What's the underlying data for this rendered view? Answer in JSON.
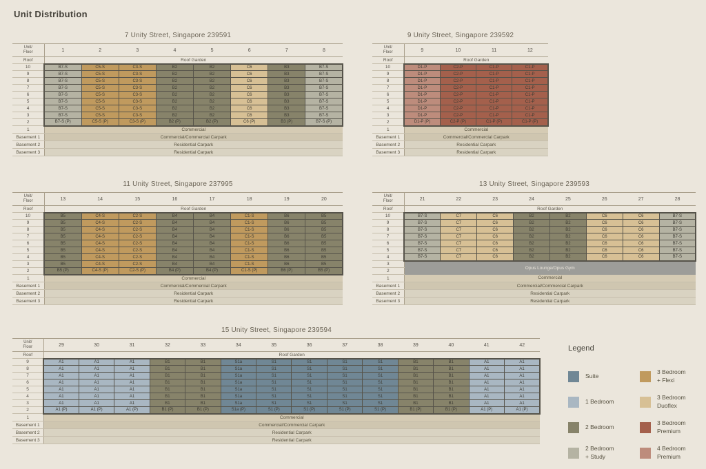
{
  "page_title": "Unit Distribution",
  "colors": {
    "background": "#ebe6dc",
    "suite": "#708795",
    "1bed": "#a9b7c2",
    "2bed": "#87836a",
    "2bs": "#b5b3a3",
    "3bf": "#c09a5e",
    "3bd": "#d7c095",
    "3bp": "#a4604c",
    "4bp": "#bd8c7c",
    "commercial": "#d5cbb4",
    "comm_carpark": "#cfc6b0",
    "res_carpark": "#d9d3c2",
    "opus": "#9d9d99",
    "opus_text": "#ebe6dc"
  },
  "buildings": [
    {
      "title": "7 Unity Street, Singapore 239591",
      "header_label_line1": "Unit/",
      "header_label_line2": "Floor",
      "columns": [
        "1",
        "2",
        "3",
        "4",
        "5",
        "6",
        "7",
        "8"
      ],
      "roof_label": "Roof",
      "roof_text": "Roof Garden",
      "upper_floors": [
        "10",
        "9",
        "8",
        "7",
        "6",
        "5",
        "4",
        "3"
      ],
      "units": [
        "B7-S|2bs",
        "C5-S|3bf",
        "C3-S|3bf",
        "B2|2bed",
        "B2|2bed",
        "C6|3bd",
        "B3|2bed",
        "B7-S|2bs"
      ],
      "p_floor": {
        "label": "2",
        "units": [
          "B7-S (P)|2bs",
          "C5-S (P)|3bf",
          "C3-S (P)|3bf",
          "B2 (P)|2bed",
          "B2 (P)|2bed",
          "C6 (P)|3bd",
          "B3 (P)|2bed",
          "B7-S (P)|2bs"
        ]
      },
      "band_rows": [
        {
          "label": "1",
          "text": "Commercial",
          "style": "commercial"
        },
        {
          "label": "Basement 1",
          "text": "Commercial/Commercial Carpark",
          "style": "comm_carpark"
        },
        {
          "label": "Basement 2",
          "text": "Residential Carpark",
          "style": "res_carpark"
        },
        {
          "label": "Basement 3",
          "text": "Residential Carpark",
          "style": "res_carpark"
        }
      ]
    },
    {
      "title": "9 Unity Street, Singapore 239592",
      "header_label_line1": "Unit/",
      "header_label_line2": "Floor",
      "columns": [
        "9",
        "10",
        "11",
        "12"
      ],
      "roof_label": "Roof",
      "roof_text": "Roof Garden",
      "upper_floors": [
        "10",
        "9",
        "8",
        "7",
        "6",
        "5",
        "4",
        "3"
      ],
      "units": [
        "D1-P|4bp",
        "C2-P|3bp",
        "C1-P|3bp",
        "C1-P|3bp"
      ],
      "p_floor": {
        "label": "2",
        "units": [
          "D1-P (P)|4bp",
          "C2-P (P)|3bp",
          "C1-P (P)|3bp",
          "C1-P (P)|3bp"
        ]
      },
      "band_rows": [
        {
          "label": "1",
          "text": "Commercial",
          "style": "commercial"
        },
        {
          "label": "Basement 1",
          "text": "Commercial/Commercial Carpark",
          "style": "comm_carpark"
        },
        {
          "label": "Basement 2",
          "text": "Residential Carpark",
          "style": "res_carpark"
        },
        {
          "label": "Basement 3",
          "text": "Residential Carpark",
          "style": "res_carpark"
        }
      ]
    },
    {
      "title": "11 Unity Street, Singapore 237995",
      "header_label_line1": "Unit/",
      "header_label_line2": "Floor",
      "columns": [
        "13",
        "14",
        "15",
        "16",
        "17",
        "18",
        "19",
        "20"
      ],
      "roof_label": "Roof",
      "roof_text": "Roof Garden",
      "upper_floors": [
        "10",
        "9",
        "8",
        "7",
        "6",
        "5",
        "4",
        "3"
      ],
      "units": [
        "B5|2bed",
        "C4-S|3bf",
        "C2-S|3bf",
        "B4|2bed",
        "B4|2bed",
        "C1-S|3bf",
        "B6|2bed",
        "B5|2bed"
      ],
      "p_floor": {
        "label": "2",
        "units": [
          "B5 (P)|2bed",
          "C4-S (P)|3bf",
          "C2-S (P)|3bf",
          "B4 (P)|2bed",
          "B4 (P)|2bed",
          "C1-S (P)|3bf",
          "B6 (P)|2bed",
          "B5 (P)|2bed"
        ]
      },
      "band_rows": [
        {
          "label": "1",
          "text": "Commercial",
          "style": "commercial"
        },
        {
          "label": "Basement 1",
          "text": "Commercial/Commercial Carpark",
          "style": "comm_carpark"
        },
        {
          "label": "Basement 2",
          "text": "Residential Carpark",
          "style": "res_carpark"
        },
        {
          "label": "Basement 3",
          "text": "Residential Carpark",
          "style": "res_carpark"
        }
      ]
    },
    {
      "title": "13 Unity Street, Singapore 239593",
      "header_label_line1": "Unit/",
      "header_label_line2": "Floor",
      "columns": [
        "21",
        "22",
        "23",
        "24",
        "25",
        "26",
        "27",
        "28"
      ],
      "roof_label": "Roof",
      "roof_text": "Roof Garden",
      "upper_floors": [
        "10",
        "9",
        "8",
        "7",
        "6",
        "5",
        "4"
      ],
      "units": [
        "B7-S|2bs",
        "C7|3bd",
        "C6|3bd",
        "B2|2bed",
        "B2|2bed",
        "C6|3bd",
        "C6|3bd",
        "B7-S|2bs"
      ],
      "merged_band": {
        "labels": [
          "3",
          "2"
        ],
        "text": "Opus Lounge/Opus Gym",
        "style": "opus"
      },
      "band_rows": [
        {
          "label": "1",
          "text": "Commercial",
          "style": "commercial"
        },
        {
          "label": "Basement 1",
          "text": "Commercial/Commercial Carpark",
          "style": "comm_carpark"
        },
        {
          "label": "Basement 2",
          "text": "Residential Carpark",
          "style": "res_carpark"
        },
        {
          "label": "Basement 3",
          "text": "Residential Carpark",
          "style": "res_carpark"
        }
      ]
    },
    {
      "title": "15 Unity Street, Singapore 239594",
      "header_label_line1": "Unit/",
      "header_label_line2": "Floor",
      "columns": [
        "29",
        "30",
        "31",
        "32",
        "33",
        "34",
        "35",
        "36",
        "37",
        "38",
        "39",
        "40",
        "41",
        "42"
      ],
      "roof_label": "Roof",
      "roof_text": "Roof Garden",
      "upper_floors": [
        "9",
        "8",
        "7",
        "6",
        "5",
        "4",
        "3"
      ],
      "units": [
        "A1|1bed",
        "A1|1bed",
        "A1|1bed",
        "B1|2bed",
        "B1|2bed",
        "S1a|suite",
        "S1|suite",
        "S1|suite",
        "S1|suite",
        "S1|suite",
        "B1|2bed",
        "B1|2bed",
        "A1|1bed",
        "A1|1bed"
      ],
      "p_floor": {
        "label": "2",
        "units": [
          "A1 (P)|1bed",
          "A1 (P)|1bed",
          "A1 (P)|1bed",
          "B1 (P)|2bed",
          "B1 (P)|2bed",
          "S1a (P)|suite",
          "S1 (P)|suite",
          "S1 (P)|suite",
          "S1 (P)|suite",
          "S1 (P)|suite",
          "B1 (P)|2bed",
          "B1 (P)|2bed",
          "A1 (P)|1bed",
          "A1 (P)|1bed"
        ]
      },
      "band_rows": [
        {
          "label": "1",
          "text": "Commercial",
          "style": "commercial"
        },
        {
          "label": "Basement 1",
          "text": "Commercial/Commercial Carpark",
          "style": "comm_carpark"
        },
        {
          "label": "Basement 2",
          "text": "Residential Carpark",
          "style": "res_carpark"
        },
        {
          "label": "Basement 3",
          "text": "Residential Carpark",
          "style": "res_carpark"
        }
      ]
    }
  ],
  "legend": {
    "title": "Legend",
    "columns": [
      [
        {
          "key": "suite",
          "lines": [
            "Suite"
          ],
          "color": "#708795"
        },
        {
          "key": "1bed",
          "lines": [
            "1 Bedroom"
          ],
          "color": "#a9b7c2"
        },
        {
          "key": "2bed",
          "lines": [
            "2 Bedroom"
          ],
          "color": "#87836a"
        },
        {
          "key": "2bs",
          "lines": [
            "2 Bedroom",
            "+ Study"
          ],
          "color": "#b5b3a3"
        }
      ],
      [
        {
          "key": "3bf",
          "lines": [
            "3 Bedroom",
            "+ Flexi"
          ],
          "color": "#c09a5e"
        },
        {
          "key": "3bd",
          "lines": [
            "3 Bedroom",
            "Duoflex"
          ],
          "color": "#d7c095"
        },
        {
          "key": "3bp",
          "lines": [
            "3 Bedroom",
            "Premium"
          ],
          "color": "#a4604c"
        },
        {
          "key": "4bp",
          "lines": [
            "4 Bedroom",
            "Premium"
          ],
          "color": "#bd8c7c"
        }
      ]
    ]
  }
}
